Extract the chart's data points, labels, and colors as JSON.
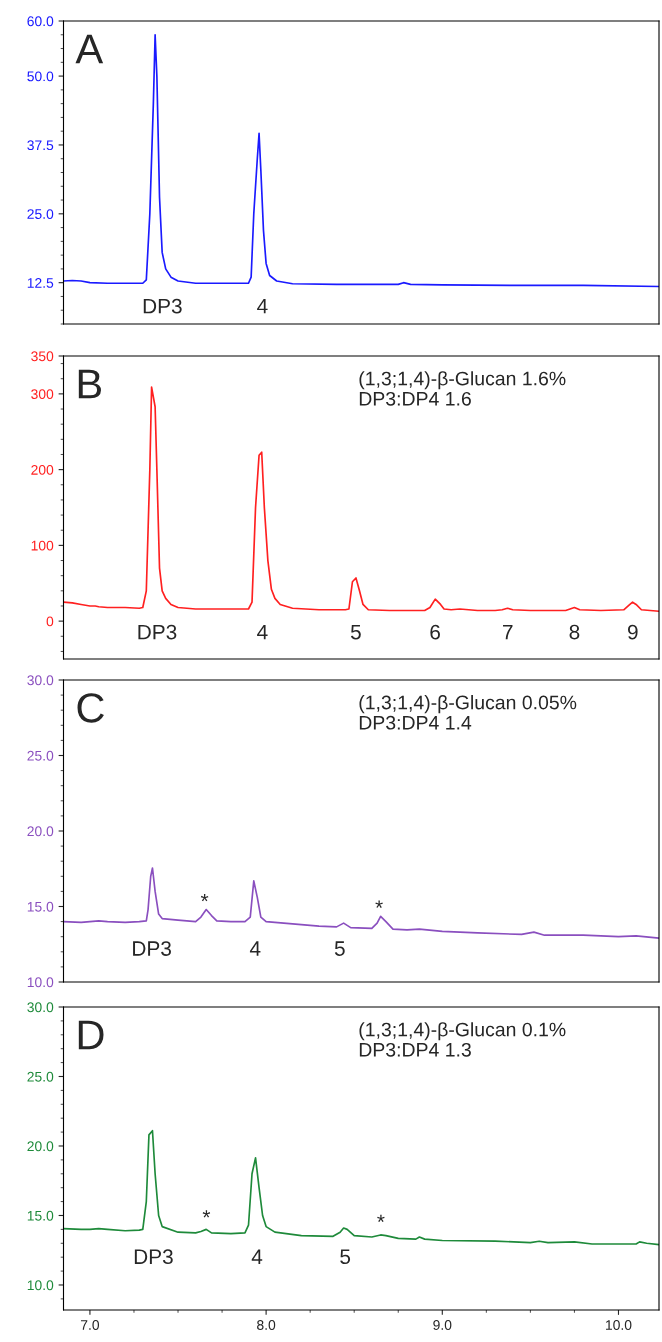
{
  "chart_data": [
    {
      "type": "line",
      "title": "A",
      "xlim": [
        6.85,
        10.23
      ],
      "ylim": [
        5,
        60
      ],
      "yticks": [
        12.5,
        {
          "value": 25,
          "label": "25.0"
        },
        37.5,
        {
          "value": 50,
          "label": "50.0"
        },
        {
          "value": 60,
          "label": "60.0"
        }
      ],
      "tick_labels": "y",
      "series": [
        {
          "color": "#1a1aff",
          "x": [
            6.85,
            6.9,
            6.95,
            7.0,
            7.1,
            7.2,
            7.3,
            7.32,
            7.34,
            7.36,
            7.37,
            7.38,
            7.395,
            7.41,
            7.43,
            7.46,
            7.5,
            7.6,
            7.7,
            7.85,
            7.9,
            7.915,
            7.93,
            7.95,
            7.96,
            7.97,
            7.985,
            8.0,
            8.02,
            8.06,
            8.15,
            8.4,
            8.6,
            8.75,
            8.78,
            8.82,
            9.0,
            9.4,
            9.8,
            10.23
          ],
          "values": [
            12.8,
            12.9,
            12.8,
            12.5,
            12.4,
            12.4,
            12.4,
            13.0,
            25,
            45,
            57.5,
            50,
            28,
            18,
            15,
            13.5,
            12.8,
            12.4,
            12.4,
            12.4,
            12.4,
            13.5,
            25,
            35,
            39.6,
            33,
            22,
            16,
            13.8,
            12.8,
            12.3,
            12.2,
            12.2,
            12.2,
            12.5,
            12.2,
            12.1,
            12.0,
            12.0,
            11.8
          ]
        }
      ],
      "annotations": [
        "DP3",
        "4"
      ]
    },
    {
      "type": "line",
      "title": "B",
      "subtitle": "(1,3;1,4)-β-Glucan 1.6%\nDP3:DP4 1.6",
      "xlim": [
        6.85,
        10.23
      ],
      "ylim": [
        -50,
        350
      ],
      "yticks": [
        0,
        100,
        200,
        300,
        350
      ],
      "tick_labels": "y",
      "series": [
        {
          "color": "#ff2020",
          "x": [
            6.85,
            6.9,
            6.95,
            7.0,
            7.03,
            7.05,
            7.1,
            7.2,
            7.28,
            7.3,
            7.32,
            7.34,
            7.35,
            7.37,
            7.38,
            7.395,
            7.41,
            7.43,
            7.46,
            7.5,
            7.6,
            7.7,
            7.88,
            7.9,
            7.92,
            7.94,
            7.96,
            7.975,
            7.99,
            8.01,
            8.03,
            8.05,
            8.08,
            8.15,
            8.3,
            8.45,
            8.47,
            8.49,
            8.51,
            8.53,
            8.55,
            8.58,
            8.7,
            8.9,
            8.93,
            8.96,
            8.99,
            9.01,
            9.05,
            9.1,
            9.2,
            9.3,
            9.34,
            9.37,
            9.4,
            9.5,
            9.7,
            9.75,
            9.78,
            9.9,
            10.03,
            10.06,
            10.08,
            10.1,
            10.13,
            10.23
          ],
          "values": [
            25,
            24,
            22,
            20,
            20,
            19,
            18,
            18,
            17,
            18,
            40,
            200,
            309,
            283,
            200,
            70,
            40,
            30,
            22,
            18,
            16,
            16,
            16,
            16,
            25,
            150,
            219,
            223,
            150,
            80,
            42,
            30,
            22,
            17,
            15,
            15,
            16,
            52,
            57,
            40,
            22,
            15,
            14,
            14,
            18,
            29,
            22,
            16,
            15,
            16,
            14,
            14,
            15,
            17,
            15,
            14,
            14,
            18,
            15,
            14,
            15,
            21,
            25,
            22,
            15,
            13
          ]
        }
      ],
      "annotations": [
        "DP3",
        "4",
        "5",
        "6",
        "7",
        "8",
        "9"
      ]
    },
    {
      "type": "line",
      "title": "C",
      "subtitle": "(1,3;1,4)-β-Glucan 0.05%\nDP3:DP4 1.4",
      "xlim": [
        6.85,
        10.23
      ],
      "ylim": [
        10,
        30
      ],
      "yticks": [
        {
          "value": 10,
          "label": "10.0"
        },
        {
          "value": 15,
          "label": "15.0"
        },
        {
          "value": 20,
          "label": "20.0"
        },
        {
          "value": 25,
          "label": "25.0"
        },
        {
          "value": 30,
          "label": "30.0"
        }
      ],
      "tick_labels": "y",
      "series": [
        {
          "color": "#8a4fbf",
          "x": [
            6.85,
            6.95,
            7.0,
            7.05,
            7.1,
            7.2,
            7.28,
            7.32,
            7.33,
            7.345,
            7.355,
            7.37,
            7.39,
            7.41,
            7.5,
            7.6,
            7.63,
            7.66,
            7.69,
            7.72,
            7.8,
            7.88,
            7.91,
            7.93,
            7.95,
            7.97,
            8.0,
            8.1,
            8.3,
            8.4,
            8.44,
            8.48,
            8.6,
            8.63,
            8.65,
            8.68,
            8.72,
            8.8,
            8.87,
            9.0,
            9.2,
            9.45,
            9.52,
            9.58,
            9.7,
            9.8,
            10.0,
            10.1,
            10.23
          ],
          "values": [
            14.0,
            13.95,
            14.0,
            14.05,
            14.0,
            13.95,
            14.0,
            14.05,
            14.8,
            17.0,
            17.55,
            16.0,
            14.5,
            14.2,
            14.1,
            14.0,
            14.3,
            14.8,
            14.4,
            14.05,
            14.0,
            14.0,
            14.3,
            16.7,
            15.6,
            14.3,
            14.0,
            13.9,
            13.7,
            13.65,
            13.9,
            13.6,
            13.55,
            13.9,
            14.35,
            14.0,
            13.5,
            13.45,
            13.5,
            13.35,
            13.25,
            13.15,
            13.3,
            13.1,
            13.1,
            13.1,
            13.0,
            13.05,
            12.9
          ]
        }
      ],
      "annotations": [
        "DP3",
        "4",
        "5",
        "*",
        "*"
      ]
    },
    {
      "type": "line",
      "title": "D",
      "subtitle": "(1,3;1,4)-β-Glucan 0.1%\nDP3:DP4 1.3",
      "xlim": [
        6.85,
        10.23
      ],
      "xticks": [
        {
          "value": 7,
          "label": "7.0"
        },
        {
          "value": 8,
          "label": "8.0"
        },
        {
          "value": 9,
          "label": "9.0"
        },
        {
          "value": 10,
          "label": "10.0"
        }
      ],
      "ylim": [
        8.2,
        30
      ],
      "yticks": [
        {
          "value": 10,
          "label": "10.0"
        },
        {
          "value": 15,
          "label": "15.0"
        },
        {
          "value": 20,
          "label": "20.0"
        },
        {
          "value": 25,
          "label": "25.0"
        },
        {
          "value": 30,
          "label": "30.0"
        }
      ],
      "series": [
        {
          "color": "#1e8a3a",
          "x": [
            6.85,
            6.95,
            7.0,
            7.05,
            7.1,
            7.2,
            7.28,
            7.3,
            7.32,
            7.335,
            7.355,
            7.37,
            7.39,
            7.41,
            7.5,
            7.6,
            7.63,
            7.66,
            7.69,
            7.8,
            7.88,
            7.9,
            7.92,
            7.94,
            7.96,
            7.98,
            8.0,
            8.05,
            8.2,
            8.38,
            8.42,
            8.44,
            8.46,
            8.5,
            8.6,
            8.65,
            8.68,
            8.75,
            8.85,
            8.87,
            8.9,
            9.0,
            9.3,
            9.5,
            9.55,
            9.6,
            9.75,
            9.85,
            10.1,
            10.12,
            10.16,
            10.23
          ],
          "values": [
            14.05,
            14.0,
            14.0,
            14.05,
            14.0,
            13.9,
            13.95,
            14.0,
            16.0,
            20.8,
            21.1,
            18.0,
            15.0,
            14.2,
            13.8,
            13.75,
            13.85,
            14.0,
            13.75,
            13.7,
            13.75,
            14.3,
            18.0,
            19.15,
            17.0,
            15.0,
            14.2,
            13.8,
            13.55,
            13.5,
            13.8,
            14.1,
            14.0,
            13.55,
            13.45,
            13.6,
            13.55,
            13.35,
            13.3,
            13.45,
            13.3,
            13.2,
            13.15,
            13.05,
            13.15,
            13.05,
            13.1,
            12.95,
            12.95,
            13.1,
            13.0,
            12.9
          ]
        }
      ],
      "annotations": [
        "DP3",
        "4",
        "5",
        "*",
        "*"
      ]
    }
  ]
}
